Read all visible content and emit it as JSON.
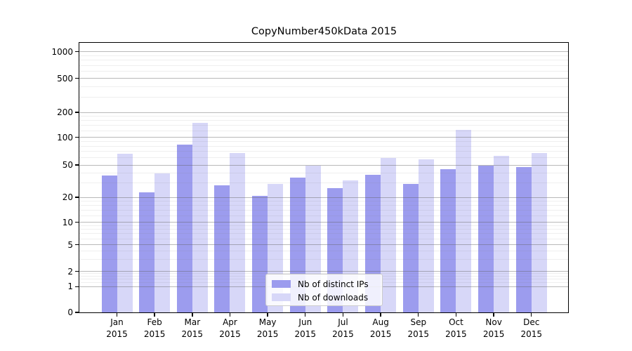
{
  "chart_data": {
    "type": "bar",
    "title": "CopyNumber450kData 2015",
    "x_axis": {
      "categories": [
        "Jan 2015",
        "Feb 2015",
        "Mar 2015",
        "Apr 2015",
        "May 2015",
        "Jun 2015",
        "Jul 2015",
        "Aug 2015",
        "Sep 2015",
        "Oct 2015",
        "Nov 2015",
        "Dec 2015"
      ]
    },
    "y_axis": {
      "scale": "symlog",
      "ticks": [
        0,
        1,
        2,
        5,
        10,
        20,
        50,
        100,
        200,
        500,
        1000
      ],
      "ylim": [
        0,
        1270
      ]
    },
    "series": [
      {
        "name": "Nb of distinct IPs",
        "color": "#9c9cee",
        "values": [
          37,
          23,
          84,
          28,
          21,
          35,
          26,
          38,
          29,
          44,
          49,
          47
        ]
      },
      {
        "name": "Nb of downloads",
        "color": "#d7d7f8",
        "values": [
          66,
          39,
          150,
          68,
          29,
          49,
          32,
          60,
          58,
          123,
          63,
          67
        ]
      }
    ],
    "legend": {
      "position": "lower center",
      "entries": [
        "Nb of distinct IPs",
        "Nb of downloads"
      ]
    },
    "grid": {
      "major": true,
      "minor": true
    },
    "colors": {
      "major_grid": "#b4b4b4",
      "minor_grid": "#ebebeb",
      "axis": "#000000",
      "background": "#ffffff"
    }
  }
}
